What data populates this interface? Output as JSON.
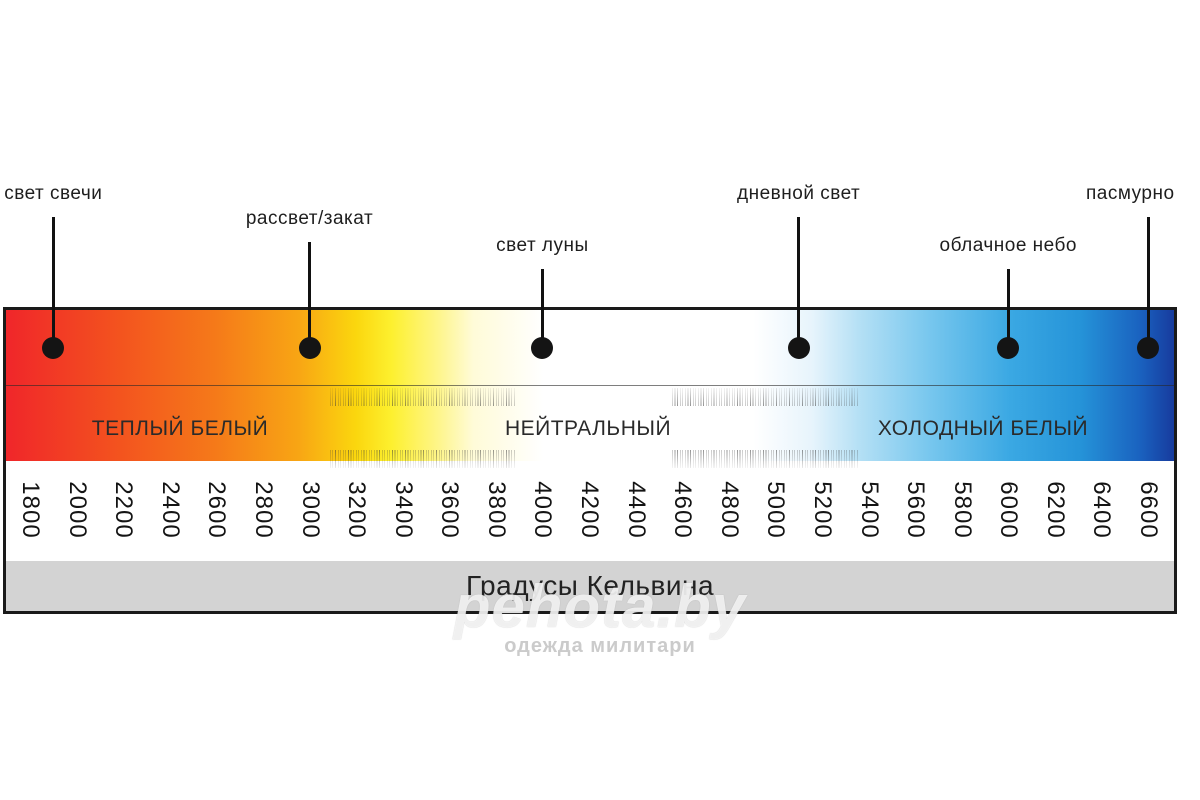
{
  "markers": [
    {
      "label": "свет свечи",
      "kelvin": 1900
    },
    {
      "label": "рассвет/закат",
      "kelvin": 3000
    },
    {
      "label": "свет луны",
      "kelvin": 4000
    },
    {
      "label": "дневной свет",
      "kelvin": 5100
    },
    {
      "label": "облачное небо",
      "kelvin": 6000
    },
    {
      "label": "пасмурно",
      "kelvin": 6600
    }
  ],
  "zones": [
    {
      "label": "ТЕПЛЫЙ БЕЛЫЙ",
      "center_kelvin": 2900
    },
    {
      "label": "НЕЙТРАЛЬНЫЙ",
      "center_kelvin": 4000
    },
    {
      "label": "ХОЛОДНЫЙ БЕЛЫЙ",
      "center_kelvin": 6000
    }
  ],
  "scale": {
    "min": 1800,
    "max": 6600,
    "ticks": [
      "1800",
      "2000",
      "2200",
      "2400",
      "2600",
      "2800",
      "3000",
      "3200",
      "3400",
      "3600",
      "3800",
      "4000",
      "4200",
      "4400",
      "4600",
      "4800",
      "5000",
      "5200",
      "5400",
      "5600",
      "5800",
      "6000",
      "6200",
      "6400",
      "6600"
    ]
  },
  "unit_label": "Градусы Кельвина",
  "watermark": {
    "main": "pehota.by",
    "sub": "одежда милитари"
  },
  "colors": {
    "warm": "#f0262a",
    "neutral": "#ffffff",
    "cool": "#173b9e",
    "unit_bar": "#d3d3d3"
  }
}
